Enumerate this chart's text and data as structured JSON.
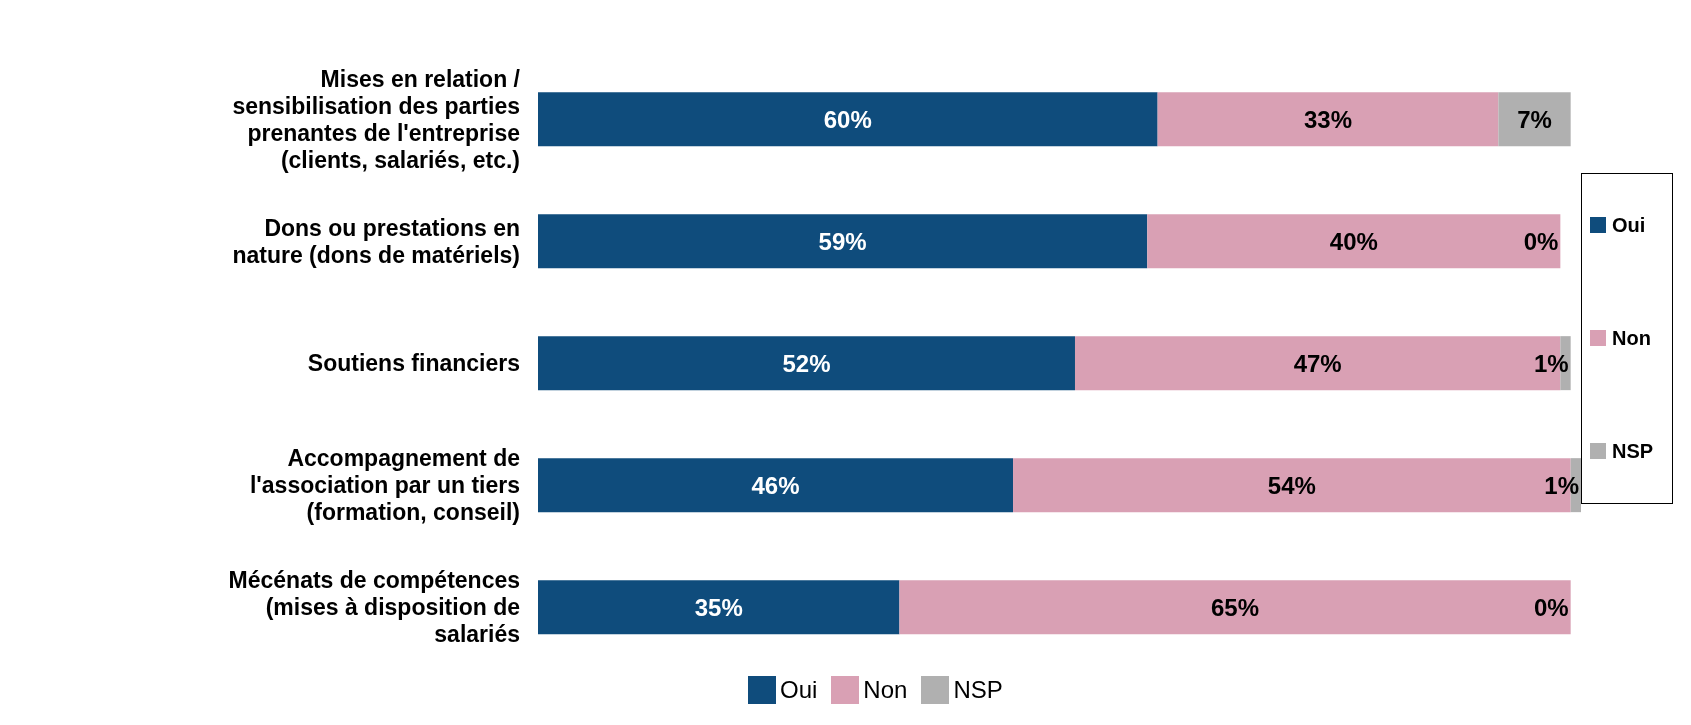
{
  "chart_data": {
    "type": "bar",
    "orientation": "horizontal",
    "stacked": true,
    "legend": "right",
    "categories": [
      "Mises en relation / sensibilisation des parties prenantes de l'entreprise (clients, salariés, etc.)",
      "Dons ou prestations en nature (dons de matériels)",
      "Soutiens financiers",
      "Accompagnement de l'association par un tiers (formation, conseil)",
      "Mécénats de compétences (mises à disposition de salariés"
    ],
    "series": [
      {
        "name": "Oui",
        "color": "#0f4c7c",
        "values": [
          60,
          59,
          52,
          46,
          35
        ],
        "value_labels": [
          "60%",
          "59%",
          "52%",
          "46%",
          "35%"
        ]
      },
      {
        "name": "Non",
        "color": "#d9a0b4",
        "values": [
          33,
          40,
          47,
          54,
          65
        ],
        "value_labels": [
          "33%",
          "40%",
          "47%",
          "54%",
          "65%"
        ]
      },
      {
        "name": "NSP",
        "color": "#b0b0b0",
        "values": [
          7,
          0,
          1,
          1,
          0
        ],
        "value_labels": [
          "7%",
          "0%",
          "1%",
          "1%",
          "0%"
        ]
      }
    ]
  }
}
